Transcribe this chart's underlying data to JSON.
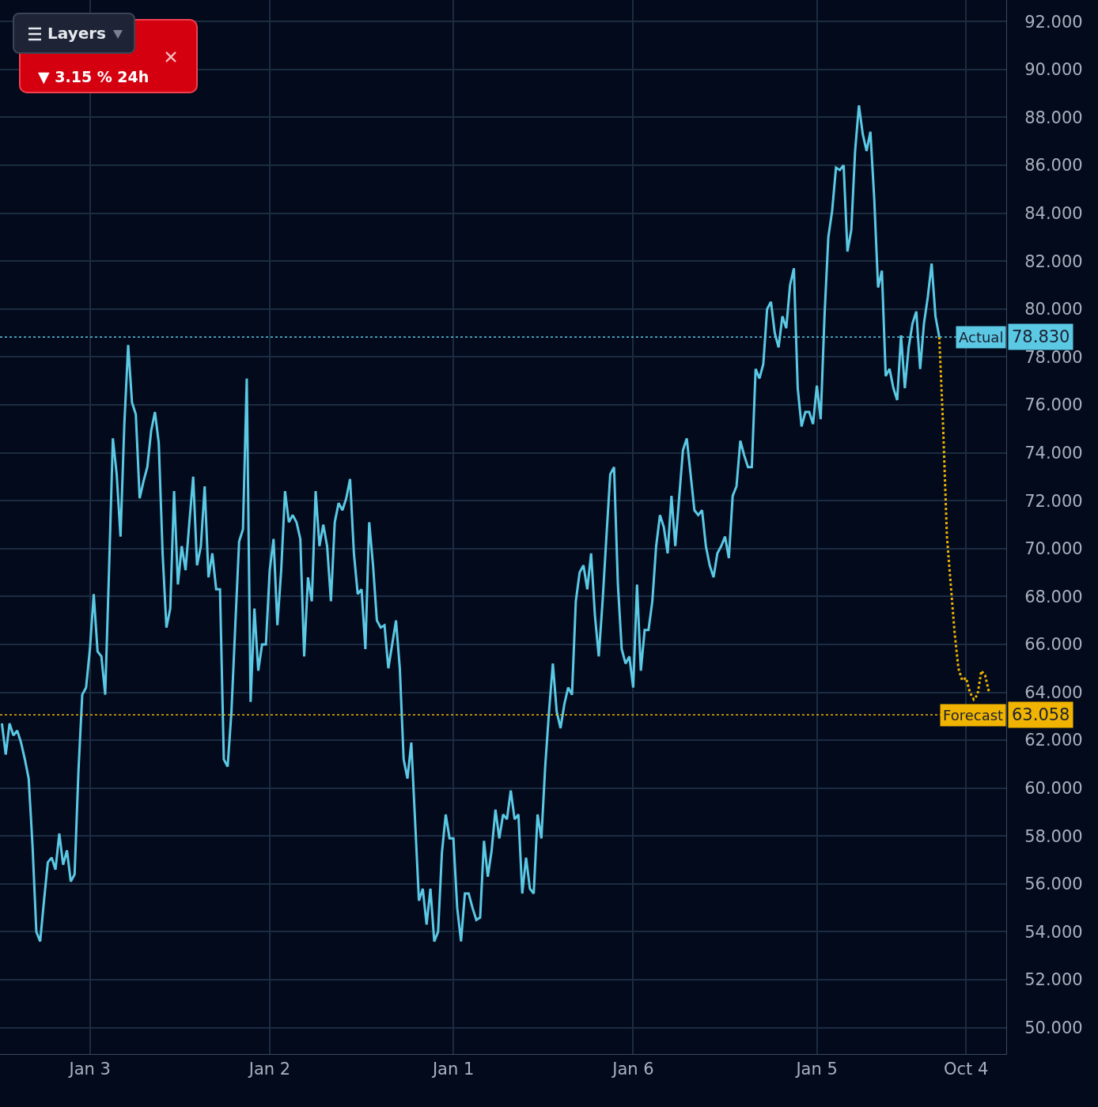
{
  "chart_data": {
    "type": "line",
    "ylim": [
      48.9,
      92.9
    ],
    "categories": [
      null,
      null,
      null,
      null,
      null,
      null,
      null,
      null,
      null,
      null,
      null,
      null,
      null,
      null,
      null,
      null,
      null,
      null,
      null,
      null,
      null,
      null,
      null,
      "Jan 3",
      null,
      null,
      null,
      null,
      null,
      null,
      null,
      null,
      null,
      null,
      null,
      null,
      null,
      null,
      null,
      null,
      null,
      null,
      null,
      null,
      null,
      null,
      null,
      null,
      null,
      null,
      null,
      null,
      null,
      null,
      null,
      null,
      null,
      null,
      null,
      null,
      null,
      null,
      null,
      null,
      null,
      null,
      null,
      null,
      null,
      null,
      "Jan 2",
      null,
      null,
      null,
      null,
      null,
      null,
      null,
      null,
      null,
      null,
      null,
      null,
      null,
      null,
      null,
      null,
      null,
      null,
      null,
      null,
      null,
      null,
      null,
      null,
      null,
      null,
      null,
      null,
      null,
      null,
      null,
      null,
      null,
      null,
      null,
      null,
      null,
      null,
      null,
      null,
      null,
      null,
      null,
      null,
      null,
      null,
      null,
      "Jan 1",
      null,
      null,
      null,
      null,
      null,
      null,
      null,
      null,
      null,
      null,
      null,
      null,
      null,
      null,
      null,
      null,
      null,
      null,
      null,
      null,
      null,
      null,
      null,
      null,
      null,
      null,
      null,
      null,
      null,
      null,
      null,
      null,
      null,
      null,
      null,
      null,
      null,
      null,
      null,
      null,
      null,
      null,
      null,
      null,
      null,
      null,
      "Jan 6",
      null,
      null,
      null,
      null,
      null,
      null,
      null,
      null,
      null,
      null,
      null,
      null,
      null,
      null,
      null,
      null,
      null,
      null,
      null,
      null,
      null,
      null,
      null,
      null,
      null,
      null,
      null,
      null,
      null,
      null,
      null,
      null,
      null,
      null,
      null,
      null,
      null,
      null,
      null,
      null,
      null,
      null,
      null,
      null,
      null,
      null,
      null,
      "Jan 5",
      null,
      null,
      null,
      null,
      null,
      null,
      null,
      null,
      null,
      null,
      null,
      null,
      null,
      null,
      null,
      null,
      null,
      null,
      null,
      null,
      null,
      null,
      null,
      null,
      null,
      null,
      null,
      null,
      null,
      null,
      null,
      null,
      null,
      null,
      null,
      null,
      null,
      null,
      "Oct 4",
      null,
      null,
      null,
      null,
      null,
      null
    ],
    "yticks": [
      {
        "value": 50,
        "label": "50.000"
      },
      {
        "value": 52,
        "label": "52.000"
      },
      {
        "value": 54,
        "label": "54.000"
      },
      {
        "value": 56,
        "label": "56.000"
      },
      {
        "value": 58,
        "label": "58.000"
      },
      {
        "value": 60,
        "label": "60.000"
      },
      {
        "value": 62,
        "label": "62.000"
      },
      {
        "value": 64,
        "label": "64.000"
      },
      {
        "value": 66,
        "label": "66.000"
      },
      {
        "value": 68,
        "label": "68.000"
      },
      {
        "value": 70,
        "label": "70.000"
      },
      {
        "value": 72,
        "label": "72.000"
      },
      {
        "value": 74,
        "label": "74.000"
      },
      {
        "value": 76,
        "label": "76.000"
      },
      {
        "value": 78,
        "label": "78.000"
      },
      {
        "value": 80,
        "label": "80.000"
      },
      {
        "value": 82,
        "label": "82.000"
      },
      {
        "value": 84,
        "label": "84.000"
      },
      {
        "value": 86,
        "label": "86.000"
      },
      {
        "value": 88,
        "label": "88.000"
      },
      {
        "value": 90,
        "label": "90.000"
      },
      {
        "value": 92,
        "label": "92.000"
      }
    ],
    "grid": true,
    "marker": "none",
    "line_style": "solid",
    "series": [
      {
        "color": "#5bc8e4",
        "values": [
          62.7,
          61.4,
          62.7,
          62.2,
          62.4,
          61.9,
          61.2,
          60.4,
          57.6,
          54.0,
          53.6,
          55.3,
          56.9,
          57.1,
          56.6,
          58.1,
          56.8,
          57.4,
          56.1,
          56.4,
          60.7,
          63.9,
          64.2,
          65.8,
          68.1,
          65.7,
          65.5,
          63.9,
          69.1,
          74.6,
          73.1,
          70.5,
          75.2,
          78.5,
          76.1,
          75.6,
          72.1,
          72.8,
          73.4,
          74.9,
          75.7,
          74.4,
          69.8,
          66.7,
          67.5,
          72.4,
          68.5,
          70.1,
          69.1,
          71.1,
          73.0,
          69.3,
          70.1,
          72.6,
          68.8,
          69.8,
          68.3,
          68.3,
          61.2,
          60.9,
          63.2,
          66.8,
          70.3,
          70.8,
          77.1,
          63.6,
          67.5,
          64.9,
          66.0,
          66.0,
          69.1,
          70.4,
          66.8,
          69.1,
          72.4,
          71.1,
          71.4,
          71.1,
          70.4,
          65.5,
          68.8,
          67.8,
          72.4,
          70.1,
          71.0,
          70.1,
          67.8,
          71.1,
          71.9,
          71.6,
          72.1,
          72.9,
          69.8,
          68.1,
          68.3,
          65.8,
          71.1,
          69.3,
          67.0,
          66.7,
          66.8,
          65.0,
          66.0,
          67.0,
          65.0,
          61.2,
          60.4,
          61.9,
          58.6,
          55.3,
          55.8,
          54.3,
          55.8,
          53.6,
          54.0,
          57.3,
          58.9,
          57.9,
          57.9,
          55.0,
          53.6,
          55.6,
          55.6,
          55.0,
          54.5,
          54.6,
          57.8,
          56.3,
          57.4,
          59.1,
          57.9,
          58.9,
          58.7,
          59.9,
          58.7,
          58.9,
          55.6,
          57.1,
          55.8,
          55.6,
          58.9,
          57.9,
          60.9,
          63.2,
          65.2,
          63.2,
          62.5,
          63.5,
          64.2,
          63.9,
          67.8,
          69.0,
          69.3,
          68.3,
          69.8,
          67.2,
          65.5,
          67.8,
          70.5,
          73.1,
          73.4,
          68.5,
          65.8,
          65.2,
          65.5,
          64.2,
          68.5,
          64.9,
          66.6,
          66.6,
          67.8,
          70.1,
          71.4,
          70.9,
          69.8,
          72.2,
          70.1,
          72.1,
          74.1,
          74.6,
          73.1,
          71.6,
          71.4,
          71.6,
          70.1,
          69.3,
          68.8,
          69.8,
          70.1,
          70.5,
          69.6,
          72.2,
          72.6,
          74.5,
          73.9,
          73.4,
          73.4,
          77.5,
          77.1,
          77.7,
          80.0,
          80.3,
          79.0,
          78.4,
          79.7,
          79.2,
          81.0,
          81.7,
          76.7,
          75.1,
          75.7,
          75.7,
          75.2,
          76.8,
          75.4,
          79.7,
          83.0,
          84.1,
          85.9,
          85.8,
          86.0,
          82.4,
          83.3,
          86.6,
          88.5,
          87.3,
          86.6,
          87.4,
          84.6,
          80.9,
          81.6,
          77.2,
          77.5,
          76.7,
          76.2,
          78.9,
          76.7,
          78.4,
          79.4,
          79.9,
          77.5,
          79.4,
          80.5,
          81.9,
          79.7,
          78.83,
          null,
          null,
          null,
          null,
          null,
          null,
          null,
          null,
          null,
          null,
          null,
          null,
          null
        ]
      },
      {
        "color": "#f0b400",
        "line_style": "dotted",
        "values": [
          null,
          null,
          null,
          null,
          null,
          null,
          null,
          null,
          null,
          null,
          null,
          null,
          null,
          null,
          null,
          null,
          null,
          null,
          null,
          null,
          null,
          null,
          null,
          null,
          null,
          null,
          null,
          null,
          null,
          null,
          null,
          null,
          null,
          null,
          null,
          null,
          null,
          null,
          null,
          null,
          null,
          null,
          null,
          null,
          null,
          null,
          null,
          null,
          null,
          null,
          null,
          null,
          null,
          null,
          null,
          null,
          null,
          null,
          null,
          null,
          null,
          null,
          null,
          null,
          null,
          null,
          null,
          null,
          null,
          null,
          null,
          null,
          null,
          null,
          null,
          null,
          null,
          null,
          null,
          null,
          null,
          null,
          null,
          null,
          null,
          null,
          null,
          null,
          null,
          null,
          null,
          null,
          null,
          null,
          null,
          null,
          null,
          null,
          null,
          null,
          null,
          null,
          null,
          null,
          null,
          null,
          null,
          null,
          null,
          null,
          null,
          null,
          null,
          null,
          null,
          null,
          null,
          null,
          null,
          null,
          null,
          null,
          null,
          null,
          null,
          null,
          null,
          null,
          null,
          null,
          null,
          null,
          null,
          null,
          null,
          null,
          null,
          null,
          null,
          null,
          null,
          null,
          null,
          null,
          null,
          null,
          null,
          null,
          null,
          null,
          null,
          null,
          null,
          null,
          null,
          null,
          null,
          null,
          null,
          null,
          null,
          null,
          null,
          null,
          null,
          null,
          null,
          null,
          null,
          null,
          null,
          null,
          null,
          null,
          null,
          null,
          null,
          null,
          null,
          null,
          null,
          null,
          null,
          null,
          null,
          null,
          null,
          null,
          null,
          null,
          null,
          null,
          null,
          null,
          null,
          null,
          null,
          null,
          null,
          null,
          null,
          null,
          null,
          null,
          null,
          null,
          null,
          null,
          null,
          null,
          null,
          null,
          null,
          null,
          null,
          null,
          null,
          null,
          null,
          null,
          null,
          null,
          null,
          null,
          null,
          null,
          null,
          null,
          null,
          null,
          null,
          null,
          null,
          null,
          null,
          null,
          null,
          null,
          null,
          null,
          null,
          null,
          null,
          null,
          null,
          78.83,
          75.1,
          70.5,
          68.5,
          66.5,
          65.0,
          64.5,
          64.6,
          64.0,
          63.7,
          63.9,
          64.9,
          64.7,
          64.0
        ]
      }
    ],
    "ref_lines": [
      {
        "axis": "y",
        "value": 78.83,
        "label": "Actual",
        "color": "#5bc8e4",
        "line_style": "dotted"
      },
      {
        "axis": "y",
        "value": 63.058,
        "label": "Forecast",
        "color": "#f0b400",
        "line_style": "dotted"
      }
    ],
    "annotations": [
      "▼ 3.15 % 24h",
      "Layers",
      "78.830",
      "63.058"
    ]
  }
}
